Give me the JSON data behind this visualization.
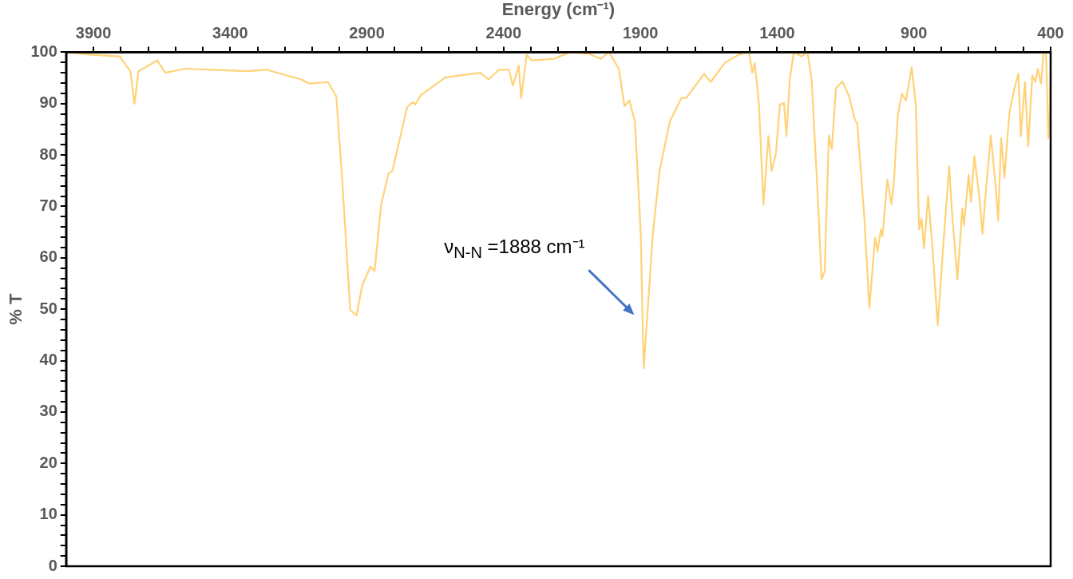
{
  "chart_data": {
    "type": "line",
    "xlabel": "Energy (cm⁻¹)",
    "ylabel": "% T",
    "annotations": [
      "ν$_{N-N}$ =1888 cm⁻¹"
    ],
    "xlim": [
      4000,
      400
    ],
    "xticks": [
      3900,
      {
        "value": 3800,
        "label": null
      },
      {
        "value": 3700,
        "label": null
      },
      {
        "value": 3600,
        "label": null
      },
      {
        "value": 3500,
        "label": null
      },
      3400,
      {
        "value": 3300,
        "label": null
      },
      {
        "value": 3200,
        "label": null
      },
      {
        "value": 3100,
        "label": null
      },
      {
        "value": 3000,
        "label": null
      },
      2900,
      {
        "value": 2800,
        "label": null
      },
      {
        "value": 2700,
        "label": null
      },
      {
        "value": 2600,
        "label": null
      },
      {
        "value": 2500,
        "label": null
      },
      2400,
      {
        "value": 2300,
        "label": null
      },
      {
        "value": 2200,
        "label": null
      },
      {
        "value": 2100,
        "label": null
      },
      {
        "value": 2000,
        "label": null
      },
      1900,
      {
        "value": 1800,
        "label": null
      },
      {
        "value": 1700,
        "label": null
      },
      {
        "value": 1600,
        "label": null
      },
      {
        "value": 1500,
        "label": null
      },
      1400,
      {
        "value": 1300,
        "label": null
      },
      {
        "value": 1200,
        "label": null
      },
      {
        "value": 1100,
        "label": null
      },
      {
        "value": 1000,
        "label": null
      },
      900,
      {
        "value": 800,
        "label": null
      },
      {
        "value": 700,
        "label": null
      },
      {
        "value": 600,
        "label": null
      },
      {
        "value": 500,
        "label": null
      },
      400
    ],
    "ylim": [
      0,
      100
    ],
    "yticks": [
      0,
      {
        "value": 2,
        "label": null
      },
      {
        "value": 4,
        "label": null
      },
      {
        "value": 6,
        "label": null
      },
      {
        "value": 8,
        "label": null
      },
      10,
      {
        "value": 12,
        "label": null
      },
      {
        "value": 14,
        "label": null
      },
      {
        "value": 16,
        "label": null
      },
      {
        "value": 18,
        "label": null
      },
      20,
      {
        "value": 22,
        "label": null
      },
      {
        "value": 24,
        "label": null
      },
      {
        "value": 26,
        "label": null
      },
      {
        "value": 28,
        "label": null
      },
      30,
      {
        "value": 32,
        "label": null
      },
      {
        "value": 34,
        "label": null
      },
      {
        "value": 36,
        "label": null
      },
      {
        "value": 38,
        "label": null
      },
      40,
      {
        "value": 42,
        "label": null
      },
      {
        "value": 44,
        "label": null
      },
      {
        "value": 46,
        "label": null
      },
      {
        "value": 48,
        "label": null
      },
      50,
      {
        "value": 52,
        "label": null
      },
      {
        "value": 54,
        "label": null
      },
      {
        "value": 56,
        "label": null
      },
      {
        "value": 58,
        "label": null
      },
      60,
      {
        "value": 62,
        "label": null
      },
      {
        "value": 64,
        "label": null
      },
      {
        "value": 66,
        "label": null
      },
      {
        "value": 68,
        "label": null
      },
      70,
      {
        "value": 72,
        "label": null
      },
      {
        "value": 74,
        "label": null
      },
      {
        "value": 76,
        "label": null
      },
      {
        "value": 78,
        "label": null
      },
      80,
      {
        "value": 82,
        "label": null
      },
      {
        "value": 84,
        "label": null
      },
      {
        "value": 86,
        "label": null
      },
      {
        "value": 88,
        "label": null
      },
      90,
      {
        "value": 92,
        "label": null
      },
      {
        "value": 94,
        "label": null
      },
      {
        "value": 96,
        "label": null
      },
      {
        "value": 98,
        "label": null
      },
      100
    ],
    "grid": false,
    "legend": false,
    "marker": "none",
    "line_style": "solid",
    "series": [
      {
        "color": "#ffd277",
        "x": [
          4000,
          3905,
          3804,
          3765,
          3750,
          3735,
          3667,
          3637,
          3565,
          3339,
          3268,
          3140,
          3110,
          3042,
          3012,
          2991,
          2961,
          2938,
          2917,
          2887,
          2872,
          2848,
          2821,
          2807,
          2753,
          2732,
          2723,
          2702,
          2613,
          2485,
          2455,
          2417,
          2381,
          2366,
          2345,
          2336,
          2316,
          2298,
          2217,
          2158,
          2089,
          2045,
          2015,
          1979,
          1958,
          1941,
          1920,
          1899,
          1888,
          1854,
          1830,
          1792,
          1750,
          1732,
          1667,
          1643,
          1592,
          1542,
          1503,
          1491,
          1482,
          1467,
          1450,
          1432,
          1420,
          1405,
          1390,
          1375,
          1366,
          1354,
          1339,
          1310,
          1289,
          1274,
          1250,
          1238,
          1226,
          1211,
          1200,
          1185,
          1161,
          1137,
          1116,
          1107,
          1081,
          1063,
          1042,
          1033,
          1021,
          1015,
          997,
          982,
          973,
          959,
          944,
          929,
          908,
          893,
          881,
          872,
          863,
          848,
          834,
          813,
          789,
          771,
          759,
          741,
          723,
          717,
          700,
          691,
          679,
          661,
          649,
          640,
          619,
          601,
          592,
          581,
          569,
          551,
          530,
          518,
          509,
          494,
          482,
          467,
          456,
          447,
          435,
          426,
          417,
          408,
          403,
          400
        ],
        "values": [
          100,
          99.5,
          99.2,
          96.3,
          90,
          96.3,
          98.4,
          96,
          96.8,
          96.3,
          96.6,
          94.7,
          93.9,
          94.2,
          91.4,
          75.7,
          49.8,
          48.8,
          54.7,
          58.3,
          57.4,
          70.4,
          76.4,
          76.9,
          89.3,
          90.3,
          89.8,
          91.7,
          95.1,
          96,
          94.7,
          96.6,
          96.6,
          93.5,
          97.4,
          91.1,
          99.5,
          98.4,
          98.7,
          100,
          99.7,
          98.7,
          100,
          96.8,
          89.5,
          90.6,
          86.6,
          65,
          38.5,
          65,
          76.9,
          86.6,
          91.1,
          91.1,
          95.8,
          94.2,
          97.9,
          99.5,
          100,
          96,
          97.9,
          90.3,
          70.4,
          83.7,
          76.9,
          80.1,
          89.8,
          90.1,
          83.7,
          94.7,
          100,
          99.2,
          100,
          94.7,
          70.4,
          55.8,
          57.4,
          83.8,
          81.2,
          93,
          94.3,
          91.4,
          86.9,
          86.1,
          67.6,
          50.2,
          63.9,
          61.2,
          65.5,
          64.2,
          75.2,
          70.4,
          74.8,
          87.7,
          91.9,
          90.6,
          97.1,
          89.8,
          65.5,
          67.6,
          61.8,
          72,
          63.4,
          46.9,
          65,
          77.8,
          67.6,
          55.8,
          69.6,
          66.3,
          76.1,
          70.9,
          79.8,
          72,
          64.7,
          70.9,
          83.8,
          73.9,
          67.2,
          83.3,
          75.6,
          88.2,
          93.5,
          95.8,
          83.7,
          94.2,
          81.7,
          95.5,
          94.2,
          96.8,
          93.9,
          100,
          100,
          83.3,
          88.5,
          97.9
        ]
      }
    ]
  }
}
